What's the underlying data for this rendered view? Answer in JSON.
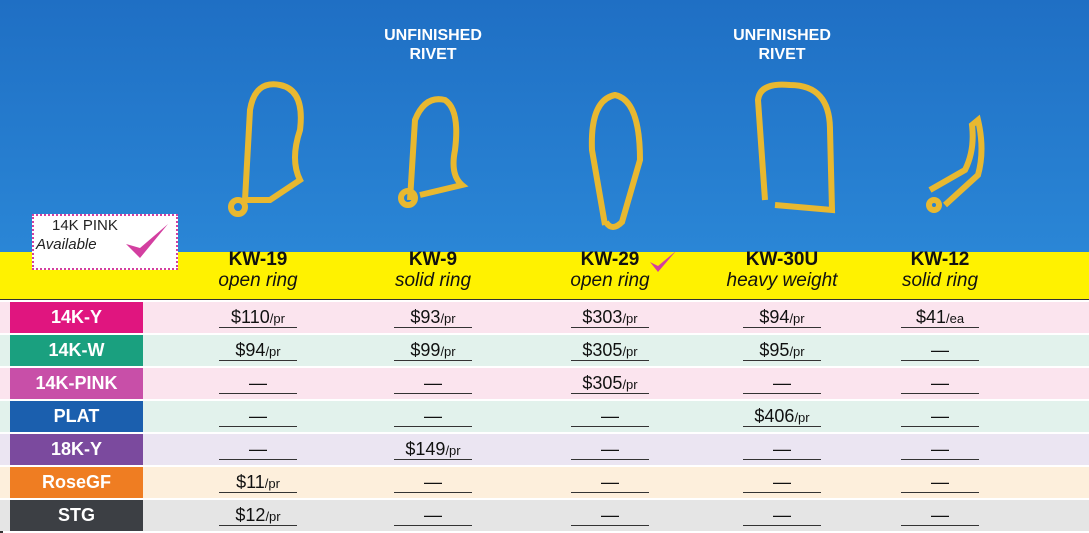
{
  "header": {
    "notes": [
      {
        "line1": "UNFINISHED",
        "line2": "RIVET",
        "column": 1
      },
      {
        "line1": "UNFINISHED",
        "line2": "RIVET",
        "column": 3
      }
    ],
    "badge": {
      "line1": "14K PINK",
      "line2": "Available"
    }
  },
  "products": [
    {
      "code": "KW-19",
      "desc": "open ring"
    },
    {
      "code": "KW-9",
      "desc": "solid ring"
    },
    {
      "code": "KW-29",
      "desc": "open ring"
    },
    {
      "code": "KW-30U",
      "desc": "heavy weight"
    },
    {
      "code": "KW-12",
      "desc": "solid ring"
    }
  ],
  "table": {
    "rows": [
      {
        "label": "14K-Y",
        "color": "#e0157f",
        "bg": "#fbe4ee",
        "cells": [
          {
            "price": "$110",
            "unit": "/pr"
          },
          {
            "price": "$93",
            "unit": "/pr"
          },
          {
            "price": "$303",
            "unit": "/pr"
          },
          {
            "price": "$94",
            "unit": "/pr"
          },
          {
            "price": "$41",
            "unit": "/ea"
          }
        ]
      },
      {
        "label": "14K-W",
        "color": "#1aa07f",
        "bg": "#e2f2ec",
        "cells": [
          {
            "price": "$94",
            "unit": "/pr"
          },
          {
            "price": "$99",
            "unit": "/pr"
          },
          {
            "price": "$305",
            "unit": "/pr"
          },
          {
            "price": "$95",
            "unit": "/pr"
          },
          "—"
        ]
      },
      {
        "label": "14K-PINK",
        "color": "#c84fa8",
        "bg": "#fbe4ee",
        "cells": [
          "—",
          "—",
          {
            "price": "$305",
            "unit": "/pr"
          },
          "—",
          "—"
        ]
      },
      {
        "label": "PLAT",
        "color": "#1b5fae",
        "bg": "#e2f2ec",
        "cells": [
          "—",
          "—",
          "—",
          {
            "price": "$406",
            "unit": "/pr"
          },
          "—"
        ]
      },
      {
        "label": "18K-Y",
        "color": "#7b4a9e",
        "bg": "#ebe5f2",
        "cells": [
          "—",
          {
            "price": "$149",
            "unit": "/pr"
          },
          "—",
          "—",
          "—"
        ]
      },
      {
        "label": "RoseGF",
        "color": "#ef7d22",
        "bg": "#fdefdc",
        "cells": [
          {
            "price": "$11",
            "unit": "/pr"
          },
          "—",
          "—",
          "—",
          "—"
        ]
      },
      {
        "label": "STG",
        "color": "#3c3f44",
        "bg": "#e5e5e5",
        "cells": [
          {
            "price": "$12",
            "unit": "/pr"
          },
          "—",
          "—",
          "—",
          "—"
        ]
      }
    ]
  }
}
